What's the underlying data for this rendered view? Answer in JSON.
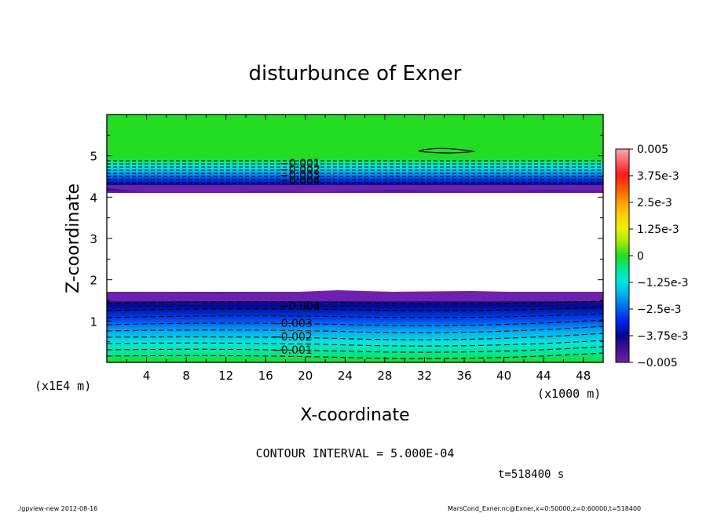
{
  "chart_data": {
    "type": "heatmap",
    "title": "disturbunce of Exner",
    "xlabel": "X-coordinate",
    "ylabel": "Z-coordinate",
    "x_unit": "(x1000 m)",
    "y_unit": "(x1E4 m)",
    "xlim": [
      0,
      50
    ],
    "ylim": [
      0,
      6
    ],
    "x_ticks": [
      "4",
      "8",
      "12",
      "16",
      "20",
      "24",
      "28",
      "32",
      "36",
      "40",
      "44",
      "48"
    ],
    "y_ticks": [
      "1",
      "2",
      "3",
      "4",
      "5"
    ],
    "colorbar": {
      "labels": [
        "0.005",
        "3.75e-3",
        "2.5e-3",
        "1.25e-3",
        "0",
        "−1.25e-3",
        "−2.5e-3",
        "−3.75e-3",
        "−0.005"
      ],
      "range": [
        -0.005,
        0.005
      ]
    },
    "contour_interval_text": "CONTOUR INTERVAL = 5.000E-04",
    "time_text": "t=518400 s",
    "upper_layer_labels": [
      "−0.001",
      "−0.002",
      "−0.003",
      "−0.004"
    ],
    "lower_layer_labels": [
      "−0.004",
      "−0.003",
      "−0.002",
      "−0.001"
    ],
    "regions": [
      {
        "z_range": [
          0,
          1.75
        ],
        "value_range": [
          -0.005,
          -0.0005
        ]
      },
      {
        "z_range": [
          1.75,
          4.1
        ],
        "value": "undefined"
      },
      {
        "z_range": [
          4.1,
          4.9
        ],
        "value_range": [
          -0.005,
          -0.0005
        ]
      },
      {
        "z_range": [
          4.9,
          6
        ],
        "value": 0
      }
    ],
    "colors": {
      "green": "#22dd22",
      "cyan": "#00eedd",
      "blue": "#0033ee",
      "navy": "#000a90",
      "purple": "#6a1aa8"
    }
  },
  "footer": {
    "left": "./gpview-new   2012-08-16",
    "right": "MarsCond_Exner.nc@Exner,x=0:50000,z=0:60000,t=518400"
  }
}
